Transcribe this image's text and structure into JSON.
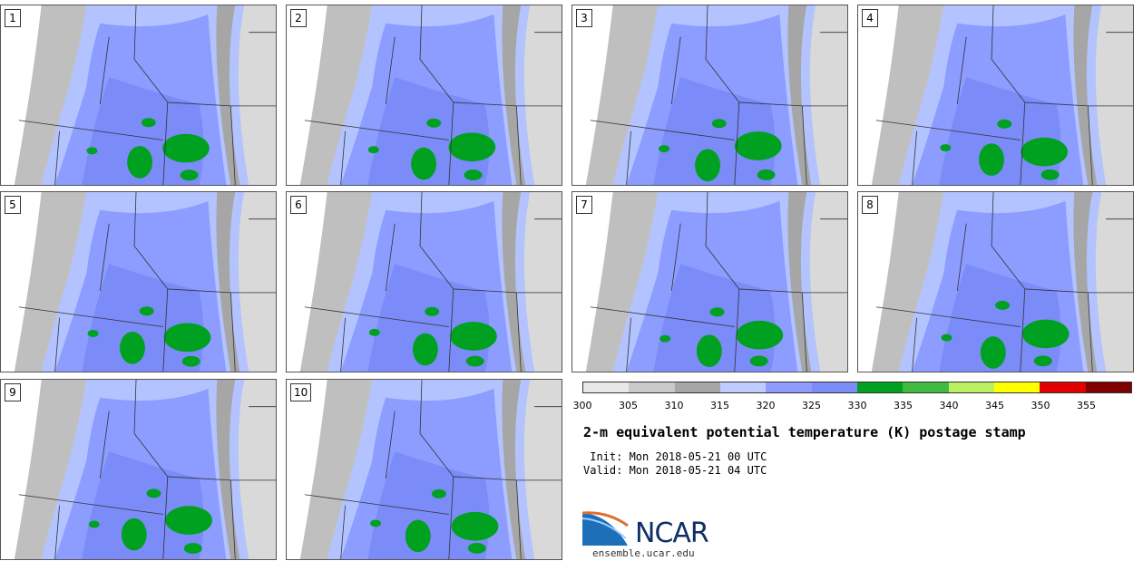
{
  "panels": [
    "1",
    "2",
    "3",
    "4",
    "5",
    "6",
    "7",
    "8",
    "9",
    "10"
  ],
  "map_colors": {
    "ocean": "#ffffff",
    "c300": "#d9d9d9",
    "c305": "#bfbfbf",
    "c310": "#a6a6a6",
    "c315": "#b3c3ff",
    "c320": "#8c9cff",
    "c325": "#7b8bf7",
    "c330": "#00a020",
    "boundary": "#333333"
  },
  "colorbar": {
    "colors": [
      "#e8e8e8",
      "#c9c9c9",
      "#a6a6a6",
      "#c0ccff",
      "#8c9cff",
      "#7b8bf7",
      "#00a020",
      "#40bb40",
      "#b8f060",
      "#ffff00",
      "#e00000",
      "#800000"
    ],
    "ticks": [
      "300",
      "305",
      "310",
      "315",
      "320",
      "325",
      "330",
      "335",
      "340",
      "345",
      "350",
      "355"
    ]
  },
  "title": "2-m equivalent potential temperature (K) postage stamp",
  "init": " Init: Mon 2018-05-21 00 UTC",
  "valid": "Valid: Mon 2018-05-21 04 UTC",
  "logo": {
    "name": "NCAR",
    "url": "ensemble.ucar.edu"
  }
}
